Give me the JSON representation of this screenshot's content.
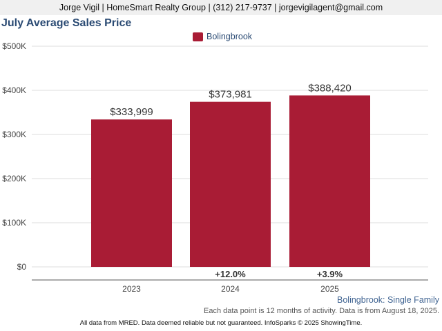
{
  "header": {
    "contact_line": "Jorge Vigil | HomeSmart Realty Group | (312) 217-9737 | jorgevigilagent@gmail.com"
  },
  "chart_data": {
    "type": "bar",
    "title": "July Average Sales Price",
    "categories": [
      "2023",
      "2024",
      "2025"
    ],
    "series": [
      {
        "name": "Bolingbrook",
        "color": "#a91c35",
        "values": [
          333999,
          373981,
          388420
        ],
        "value_labels": [
          "$333,999",
          "$373,981",
          "$388,420"
        ]
      }
    ],
    "change_labels": [
      "",
      "+12.0%",
      "+3.9%"
    ],
    "ylim": [
      0,
      500000
    ],
    "yticks": [
      0,
      100000,
      200000,
      300000,
      400000,
      500000
    ],
    "ytick_labels": [
      "$0",
      "$100K",
      "$200K",
      "$300K",
      "$400K",
      "$500K"
    ],
    "grid": true,
    "legend_position": "top-center"
  },
  "footer": {
    "subtitle": "Bolingbrook: Single Family",
    "note": "Each data point is 12 months of activity. Data is from August 18, 2025.",
    "disclaimer": "All data from MRED. Data deemed reliable but not guaranteed. InfoSparks © 2025 ShowingTime."
  }
}
